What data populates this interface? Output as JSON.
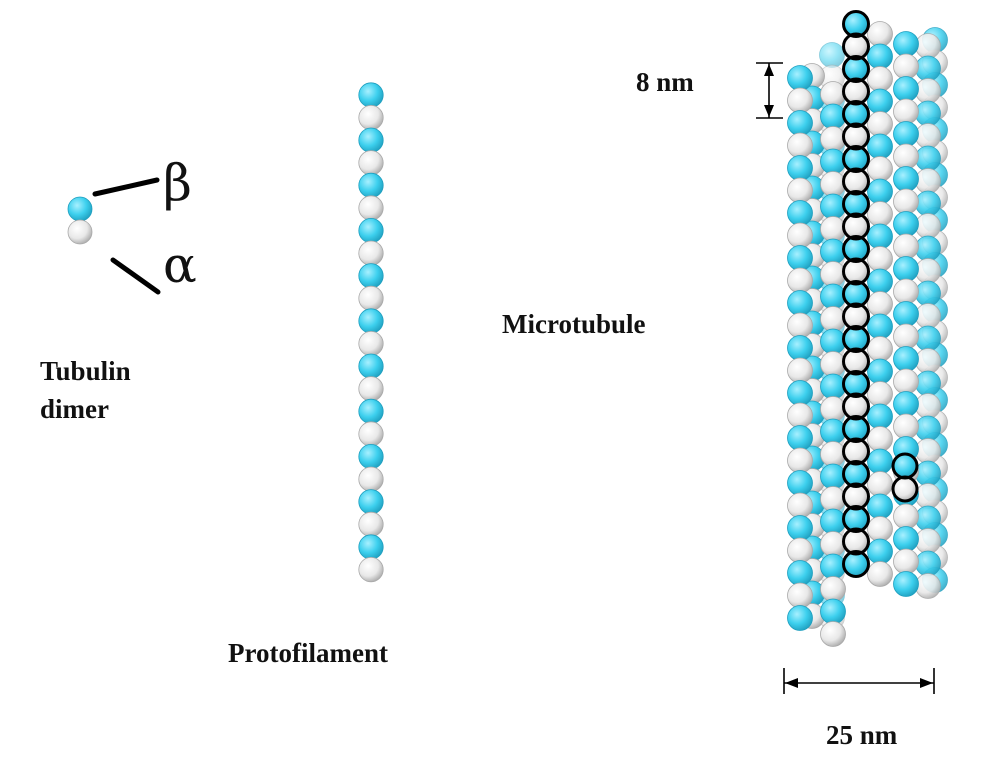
{
  "colors": {
    "beta": "#3dd0ee",
    "beta_dark": "#1f9fbf",
    "alpha": "#eeeeee",
    "alpha_dark": "#a9a9a9",
    "outline": "#000000"
  },
  "dimer": {
    "beta_label": "β",
    "alpha_label": "α",
    "caption_line1": "Tubulin",
    "caption_line2": "dimer"
  },
  "protofilament": {
    "caption": "Protofilament",
    "dimer_count": 11
  },
  "microtubule": {
    "caption": "Microtubule",
    "dimer_spacing_label": "8 nm",
    "diameter_label": "25 nm"
  }
}
